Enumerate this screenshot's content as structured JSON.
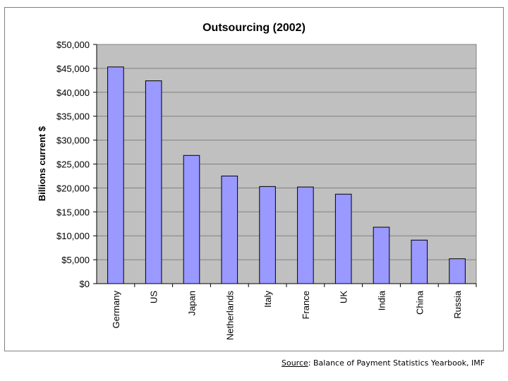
{
  "chart_data": {
    "type": "bar",
    "title": "Outsourcing (2002)",
    "xlabel": "",
    "ylabel": "Billions current $",
    "categories": [
      "Germany",
      "US",
      "Japan",
      "Netherlands",
      "Italy",
      "France",
      "UK",
      "India",
      "China",
      "Russia"
    ],
    "values": [
      45300,
      42400,
      26800,
      22500,
      20300,
      20200,
      18700,
      11800,
      9100,
      5200
    ],
    "ylim": [
      0,
      50000
    ],
    "yticks": [
      0,
      5000,
      10000,
      15000,
      20000,
      25000,
      30000,
      35000,
      40000,
      45000,
      50000
    ],
    "ytick_labels": [
      "$0",
      "$5,000",
      "$10,000",
      "$15,000",
      "$20,000",
      "$25,000",
      "$30,000",
      "$35,000",
      "$40,000",
      "$45,000",
      "$50,000"
    ],
    "grid": true,
    "legend": "none",
    "colors": {
      "bar": "#9999ff",
      "plot_bg": "#c0c0c0",
      "grid": "#808080"
    }
  },
  "source": {
    "label": "Source",
    "text": ": Balance of Payment Statistics Yearbook, IMF"
  }
}
